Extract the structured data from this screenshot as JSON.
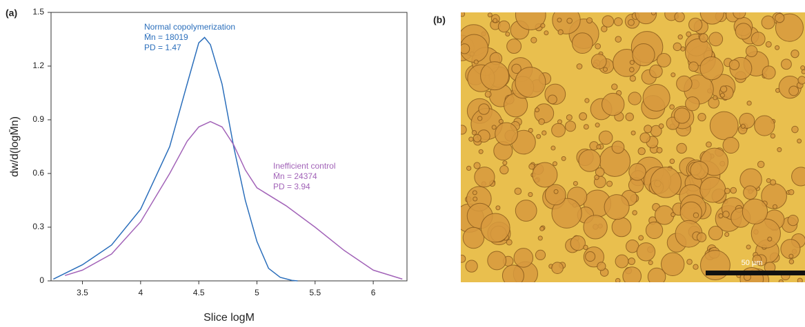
{
  "chart_data": {
    "type": "line",
    "panel_label": "(a)",
    "x_label": "Slice logM",
    "y_label": "dw/d(logM̄n)",
    "xlim": [
      3.23,
      6.29
    ],
    "ylim": [
      0,
      1.5
    ],
    "xticks": [
      3.5,
      4.0,
      4.5,
      5.0,
      5.5,
      6.0
    ],
    "yticks": [
      0,
      0.3,
      0.6,
      0.9,
      1.2,
      1.5
    ],
    "series": [
      {
        "name": "Normal copolymerization",
        "color": "#2a6ebb",
        "notes": [
          "M̄n = 18019",
          "PD = 1.47"
        ],
        "x": [
          3.25,
          3.5,
          3.75,
          4.0,
          4.25,
          4.4,
          4.5,
          4.55,
          4.6,
          4.7,
          4.8,
          4.9,
          5.0,
          5.1,
          5.2,
          5.3,
          5.35
        ],
        "values": [
          0.01,
          0.09,
          0.2,
          0.4,
          0.75,
          1.1,
          1.33,
          1.36,
          1.32,
          1.1,
          0.75,
          0.45,
          0.22,
          0.07,
          0.02,
          0.003,
          0
        ]
      },
      {
        "name": "Inefficient control",
        "color": "#a263b8",
        "notes": [
          "M̄n = 24374",
          "PD = 3.94"
        ],
        "x": [
          3.35,
          3.5,
          3.75,
          4.0,
          4.25,
          4.4,
          4.5,
          4.6,
          4.7,
          4.8,
          4.9,
          5.0,
          5.25,
          5.5,
          5.75,
          6.0,
          6.25
        ],
        "values": [
          0.03,
          0.06,
          0.15,
          0.33,
          0.6,
          0.78,
          0.86,
          0.89,
          0.86,
          0.76,
          0.62,
          0.52,
          0.42,
          0.3,
          0.17,
          0.06,
          0.01
        ]
      }
    ]
  },
  "image": {
    "panel_label": "(b)",
    "scale_bar": "50 µm"
  }
}
